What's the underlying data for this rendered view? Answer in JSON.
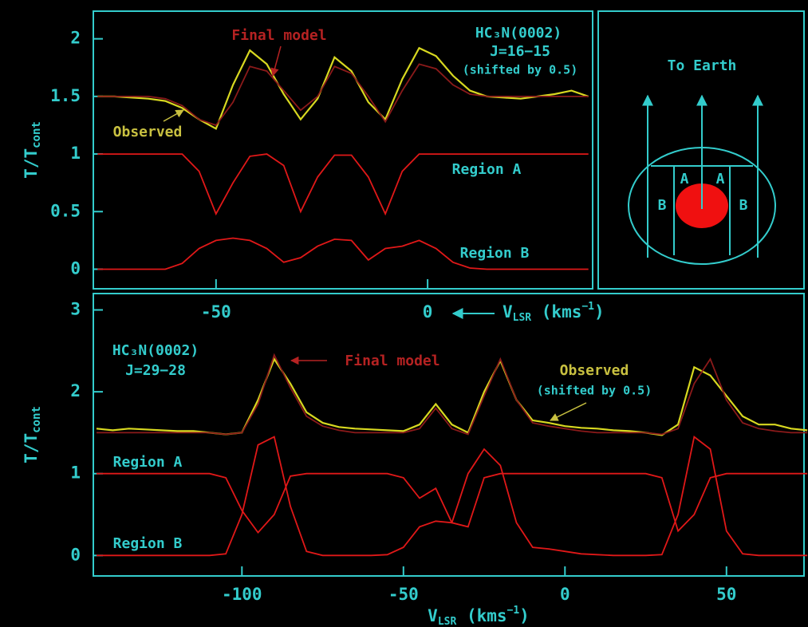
{
  "chart_data": [
    {
      "type": "line",
      "x": [
        -78,
        -74,
        -70,
        -66,
        -62,
        -58,
        -54,
        -50,
        -46,
        -42,
        -38,
        -34,
        -30,
        -26,
        -22,
        -18,
        -14,
        -10,
        -6,
        -2,
        2,
        6,
        10,
        14,
        18,
        22,
        26,
        30,
        34,
        38
      ],
      "series": [
        {
          "name": "Observed",
          "color": "#d8d820",
          "values": [
            1.5,
            1.5,
            1.49,
            1.48,
            1.46,
            1.4,
            1.3,
            1.22,
            1.6,
            1.9,
            1.78,
            1.52,
            1.3,
            1.48,
            1.84,
            1.72,
            1.45,
            1.3,
            1.65,
            1.92,
            1.85,
            1.68,
            1.55,
            1.5,
            1.49,
            1.48,
            1.5,
            1.52,
            1.55,
            1.5
          ]
        },
        {
          "name": "Final model",
          "color": "#8b1a1a",
          "values": [
            1.5,
            1.5,
            1.5,
            1.5,
            1.48,
            1.42,
            1.3,
            1.25,
            1.45,
            1.76,
            1.72,
            1.55,
            1.38,
            1.5,
            1.76,
            1.7,
            1.5,
            1.28,
            1.55,
            1.78,
            1.74,
            1.6,
            1.52,
            1.5,
            1.5,
            1.5,
            1.5,
            1.5,
            1.5,
            1.5
          ]
        },
        {
          "name": "Region A",
          "color": "#e01818",
          "values": [
            1,
            1,
            1,
            1,
            1,
            1,
            0.85,
            0.48,
            0.75,
            0.98,
            1,
            0.9,
            0.5,
            0.8,
            0.99,
            0.99,
            0.8,
            0.48,
            0.85,
            1,
            1,
            1,
            1,
            1,
            1,
            1,
            1,
            1,
            1,
            1
          ]
        },
        {
          "name": "Region B",
          "color": "#e01818",
          "values": [
            0,
            0,
            0,
            0,
            0,
            0.05,
            0.18,
            0.25,
            0.27,
            0.25,
            0.18,
            0.06,
            0.1,
            0.2,
            0.26,
            0.25,
            0.08,
            0.18,
            0.2,
            0.25,
            0.18,
            0.06,
            0.01,
            0,
            0,
            0,
            0,
            0,
            0,
            0
          ]
        }
      ],
      "annotations": [
        "HC₃N(0002)",
        "J=16−15",
        "(shifted by 0.5)"
      ],
      "xlabel": {
        "main": "V",
        "sub": "LSR",
        "unit": " (kms",
        "sup": "−1",
        "close": ")"
      },
      "ylabel": {
        "main": "T/T",
        "sub": "cont"
      },
      "xlim": [
        -79,
        39
      ],
      "ylim": [
        -0.17,
        2.24
      ],
      "xticks": [
        -50,
        0
      ],
      "yticks": [
        0,
        0.5,
        1,
        1.5,
        2
      ]
    },
    {
      "type": "line",
      "x": [
        -145,
        -140,
        -135,
        -130,
        -125,
        -120,
        -115,
        -110,
        -105,
        -100,
        -95,
        -90,
        -85,
        -80,
        -75,
        -70,
        -65,
        -60,
        -55,
        -50,
        -45,
        -40,
        -35,
        -30,
        -25,
        -20,
        -15,
        -10,
        -5,
        0,
        5,
        10,
        15,
        20,
        25,
        30,
        35,
        40,
        45,
        50,
        55,
        60,
        65,
        70,
        75
      ],
      "series": [
        {
          "name": "Observed",
          "color": "#d8d820",
          "values": [
            1.55,
            1.53,
            1.55,
            1.54,
            1.53,
            1.52,
            1.52,
            1.5,
            1.48,
            1.5,
            1.9,
            2.4,
            2.1,
            1.75,
            1.62,
            1.57,
            1.55,
            1.54,
            1.53,
            1.52,
            1.6,
            1.85,
            1.6,
            1.5,
            2.0,
            2.38,
            1.9,
            1.65,
            1.62,
            1.58,
            1.56,
            1.55,
            1.53,
            1.52,
            1.5,
            1.47,
            1.6,
            2.3,
            2.2,
            1.95,
            1.7,
            1.6,
            1.6,
            1.55,
            1.53
          ]
        },
        {
          "name": "Final model",
          "color": "#8b1a1a",
          "values": [
            1.5,
            1.5,
            1.5,
            1.5,
            1.5,
            1.5,
            1.5,
            1.5,
            1.48,
            1.5,
            1.85,
            2.45,
            2.05,
            1.7,
            1.58,
            1.53,
            1.5,
            1.5,
            1.5,
            1.5,
            1.55,
            1.8,
            1.55,
            1.48,
            1.95,
            2.4,
            1.9,
            1.62,
            1.58,
            1.55,
            1.52,
            1.5,
            1.5,
            1.5,
            1.5,
            1.48,
            1.55,
            2.1,
            2.4,
            1.9,
            1.62,
            1.55,
            1.52,
            1.5,
            1.5
          ]
        },
        {
          "name": "Region A",
          "color": "#e01818",
          "values": [
            1,
            1,
            1,
            1,
            1,
            1,
            1,
            1,
            0.95,
            0.55,
            0.28,
            0.5,
            0.97,
            1,
            1,
            1,
            1,
            1,
            1,
            0.95,
            0.7,
            0.82,
            0.4,
            0.35,
            0.95,
            1,
            1,
            1,
            1,
            1,
            1,
            1,
            1,
            1,
            1,
            0.95,
            0.3,
            0.5,
            0.95,
            1,
            1,
            1,
            1,
            1,
            1
          ]
        },
        {
          "name": "Region B",
          "color": "#e01818",
          "values": [
            0,
            0,
            0,
            0,
            0,
            0,
            0,
            0,
            0.02,
            0.5,
            1.35,
            1.45,
            0.6,
            0.05,
            0,
            0,
            0,
            0,
            0.01,
            0.1,
            0.35,
            0.42,
            0.4,
            1.0,
            1.3,
            1.1,
            0.4,
            0.1,
            0.08,
            0.05,
            0.02,
            0.01,
            0,
            0,
            0,
            0.01,
            0.5,
            1.45,
            1.3,
            0.3,
            0.02,
            0,
            0,
            0,
            0
          ]
        }
      ],
      "annotations": [
        "HC₃N(0002)",
        "J=29−28",
        "(shifted by 0.5)"
      ],
      "xlabel": {
        "main": "V",
        "sub": "LSR",
        "unit": " (kms",
        "sup": "−1",
        "close": ")"
      },
      "ylabel": {
        "main": "T/T",
        "sub": "cont"
      },
      "xlim": [
        -146,
        74
      ],
      "ylim": [
        -0.25,
        3.2
      ],
      "xticks": [
        -100,
        -50,
        0,
        50
      ],
      "yticks": [
        0,
        1,
        2,
        3
      ]
    }
  ],
  "inset": {
    "title": "To Earth",
    "labels": [
      "B",
      "A",
      "A",
      "B"
    ]
  }
}
